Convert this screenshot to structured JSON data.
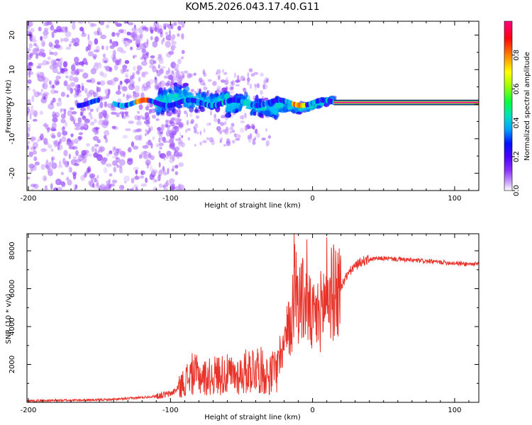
{
  "title": "KOM5.2026.043.17.40.G11",
  "colors": {
    "snr_line": "#e8332a",
    "axis": "#000000",
    "background": "#ffffff"
  },
  "chart_data": [
    {
      "type": "heatmap",
      "name": "spectrogram",
      "xlabel": "Height of straight line (km)",
      "ylabel": "Frequency (Hz)",
      "xlim": [
        -201,
        117
      ],
      "ylim": [
        -25,
        24
      ],
      "x_ticks": [
        -200,
        -100,
        0,
        100
      ],
      "y_ticks": [
        -20,
        -10,
        0,
        10,
        20
      ],
      "colorbar": {
        "label": "Normalized spectral amplitude",
        "range": [
          0.0,
          1.0
        ],
        "ticks": [
          "0.0",
          "0.2",
          "0.4",
          "0.6",
          "0.8"
        ],
        "colormap": [
          "#ffffff",
          "#b070ff",
          "#6a00ff",
          "#0010ff",
          "#00c0ff",
          "#00ff60",
          "#a0ff00",
          "#ffff00",
          "#ff8000",
          "#ff0000",
          "#ff00a0"
        ]
      },
      "dominant_ridge": {
        "description": "strong narrow band near 0.5 Hz from +15 km to +117 km",
        "frequency": 0.5,
        "x_start": 15,
        "x_end": 117,
        "amplitude": 1.0
      },
      "noise_region": {
        "x_start": -201,
        "x_end": -100,
        "freq_range": [
          -25,
          24
        ],
        "amplitude": 0.1
      }
    },
    {
      "type": "line",
      "name": "snr",
      "xlabel": "Height of straight line (km)",
      "ylabel": "SNR (10 * v/v)",
      "xlim": [
        -201,
        117
      ],
      "ylim": [
        0,
        8900
      ],
      "x_ticks": [
        -200,
        -100,
        0,
        100
      ],
      "y_ticks": [
        2000,
        4000,
        6000,
        8000
      ],
      "series": [
        {
          "name": "SNR",
          "x": [
            -201,
            -190,
            -180,
            -170,
            -160,
            -150,
            -140,
            -130,
            -120,
            -110,
            -100,
            -95,
            -90,
            -85,
            -80,
            -75,
            -70,
            -65,
            -60,
            -55,
            -50,
            -45,
            -40,
            -35,
            -30,
            -25,
            -20,
            -15,
            -13,
            -10,
            -5,
            0,
            5,
            10,
            15,
            20,
            25,
            30,
            35,
            40,
            50,
            60,
            70,
            80,
            90,
            100,
            110,
            117
          ],
          "y": [
            80,
            90,
            100,
            110,
            120,
            130,
            150,
            200,
            260,
            330,
            450,
            700,
            1100,
            1500,
            1400,
            1300,
            1400,
            1500,
            1450,
            1400,
            1500,
            1700,
            1900,
            1600,
            1400,
            1900,
            3200,
            4200,
            6200,
            5600,
            5200,
            4300,
            4700,
            5600,
            5800,
            6100,
            6800,
            7200,
            7450,
            7550,
            7600,
            7550,
            7500,
            7450,
            7400,
            7350,
            7300,
            7300
          ]
        }
      ],
      "spikes": [
        {
          "x": -13,
          "y": 8900
        },
        {
          "x": -4,
          "y": 8600
        },
        {
          "x": 10,
          "y": 8700
        }
      ]
    }
  ]
}
